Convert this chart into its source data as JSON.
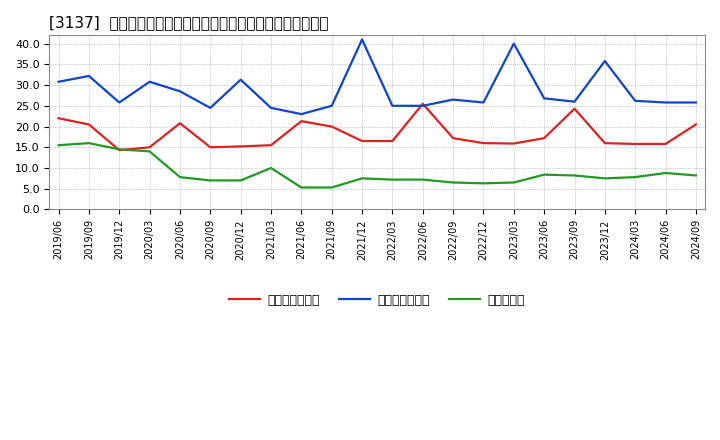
{
  "title": "[3137]  売上債権回転率、買入債務回転率、在庫回転率の推移",
  "x_labels": [
    "2019/06",
    "2019/09",
    "2019/12",
    "2020/03",
    "2020/06",
    "2020/09",
    "2020/12",
    "2021/03",
    "2021/06",
    "2021/09",
    "2021/12",
    "2022/03",
    "2022/06",
    "2022/09",
    "2022/12",
    "2023/03",
    "2023/06",
    "2023/09",
    "2023/12",
    "2024/03",
    "2024/06",
    "2024/09"
  ],
  "uriage": [
    22.0,
    20.5,
    14.3,
    15.0,
    20.8,
    15.0,
    15.2,
    15.5,
    21.3,
    20.0,
    16.5,
    16.5,
    25.5,
    17.2,
    16.0,
    15.9,
    17.2,
    24.3,
    16.0,
    15.8,
    15.8,
    20.5
  ],
  "kaiire": [
    30.8,
    32.2,
    25.8,
    30.8,
    28.5,
    24.5,
    31.3,
    24.5,
    23.0,
    25.0,
    41.0,
    25.0,
    25.0,
    26.5,
    25.8,
    40.0,
    26.8,
    26.0,
    35.8,
    26.2,
    25.8,
    25.8
  ],
  "zaiko": [
    15.5,
    16.0,
    14.5,
    14.0,
    7.8,
    7.0,
    7.0,
    10.0,
    5.3,
    5.3,
    7.5,
    7.2,
    7.2,
    6.5,
    6.3,
    6.5,
    8.4,
    8.2,
    7.5,
    7.8,
    8.8,
    8.2
  ],
  "color_uriage": "#dd2222",
  "color_kaiire": "#1144cc",
  "color_zaiko": "#229922",
  "ylim": [
    0,
    42
  ],
  "yticks": [
    0.0,
    5.0,
    10.0,
    15.0,
    20.0,
    25.0,
    30.0,
    35.0,
    40.0
  ],
  "legend_uriage": "売上債権回転率",
  "legend_kaiire": "買入債務回転率",
  "legend_zaiko": "在庫回転率",
  "bg_color": "#ffffff",
  "grid_color": "#aaaaaa",
  "plot_bg": "#e8e8e8"
}
